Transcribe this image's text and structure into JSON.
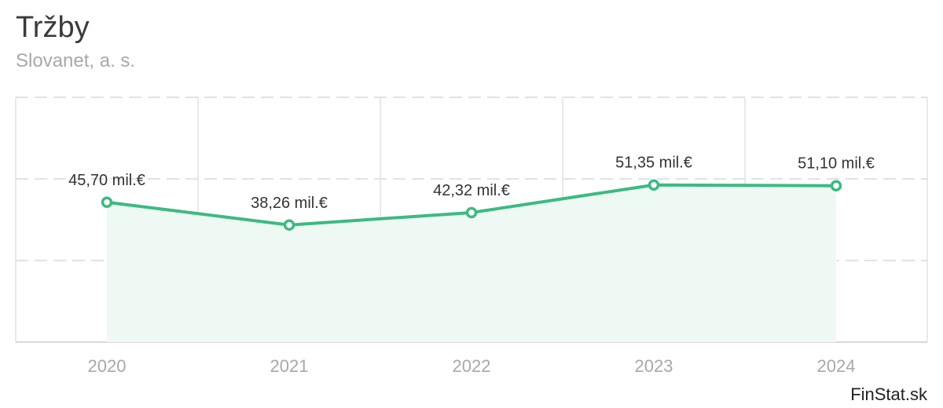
{
  "header": {
    "title": "Tržby",
    "subtitle": "Slovanet, a. s."
  },
  "brand": "FinStat.sk",
  "colors": {
    "line": "#3cba82",
    "area": "#eef9f4",
    "grid": "#e2e2e2"
  },
  "chart_data": {
    "type": "area",
    "categories": [
      "2020",
      "2021",
      "2022",
      "2023",
      "2024"
    ],
    "values": [
      45.7,
      38.26,
      42.32,
      51.35,
      51.1
    ],
    "data_labels": [
      "45,70 mil.€",
      "38,26 mil.€",
      "42,32 mil.€",
      "51,35 mil.€",
      "51,10 mil.€"
    ],
    "ylim": [
      0,
      80
    ],
    "grid": true
  }
}
